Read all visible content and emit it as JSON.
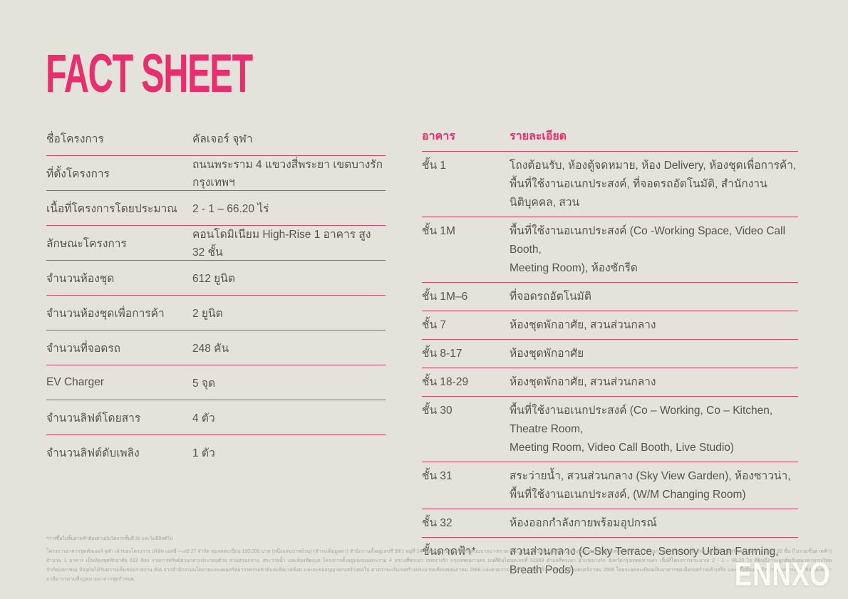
{
  "page": {
    "title": "FACT SHEET",
    "background_color": "#e4e3db",
    "accent_color": "#e82e6e",
    "divider_color": "#c9476f",
    "text_color": "#55544e"
  },
  "project_table": {
    "rows": [
      {
        "label": "ชื่อโครงการ",
        "value": "คัลเจอร์ จุฬา"
      },
      {
        "label": "ที่ตั้งโครงการ",
        "value": "ถนนพระราม 4 แขวงสี่พระยา เขตบางรัก กรุงเทพฯ"
      },
      {
        "label": "เนื้อที่โครงการโดยประมาณ",
        "value": "2 - 1 – 66.20 ไร่"
      },
      {
        "label": "ลักษณะโครงการ",
        "value": "คอนโดมิเนียม High-Rise 1 อาคาร สูง 32 ชั้น"
      },
      {
        "label": "จำนวนห้องชุด",
        "value": "612 ยูนิต"
      },
      {
        "label": "จำนวนห้องชุดเพื่อการค้า",
        "value": " 2 ยูนิต"
      },
      {
        "label": "จำนวนที่จอดรถ",
        "value": "248 คัน"
      },
      {
        "label": "EV Charger",
        "value": "5 จุด"
      },
      {
        "label": "จำนวนลิฟต์โดยสาร",
        "value": "4 ตัว"
      },
      {
        "label": "จำนวนลิฟต์ดับเพลิง",
        "value": "1 ตัว"
      }
    ]
  },
  "building_table": {
    "header": {
      "col1": "อาคาร",
      "col2": "รายละเอียด"
    },
    "rows": [
      {
        "floor": "ชั้น 1",
        "detail": "โถงต้อนรับ, ห้องตู้จดหมาย, ห้อง Delivery, ห้องชุดเพื่อการค้า,\nพื้นที่ใช้งานอเนกประสงค์, ที่จอดรถอัตโนมัติ, สำนักงานนิติบุคคล, สวน"
      },
      {
        "floor": "ชั้น 1M",
        "detail": "พื้นที่ใช้งานอเนกประสงค์ (Co -Working Space, Video Call Booth,\nMeeting Room), ห้องซักรีด"
      },
      {
        "floor": "ชั้น 1M–6",
        "detail": "ที่จอดรถอัตโนมัติ"
      },
      {
        "floor": "ชั้น 7",
        "detail": "ห้องชุดพักอาศัย, สวนส่วนกลาง"
      },
      {
        "floor": "ชั้น 8-17",
        "detail": "ห้องชุดพักอาศัย"
      },
      {
        "floor": "ชั้น 18-29",
        "detail": "ห้องชุดพักอาศัย, สวนส่วนกลาง"
      },
      {
        "floor": "ชั้น 30",
        "detail": "พื้นที่ใช้งานอเนกประสงค์ (Co – Working, Co – Kitchen, Theatre Room,\nMeeting Room, Video Call Booth, Live Studio)"
      },
      {
        "floor": "ชั้น 31",
        "detail": "สระว่ายน้ำ, สวนส่วนกลาง (Sky View Garden), ห้องซาวน่า,\nพื้นที่ใช้งานอเนกประสงค์, (W/M Changing Room)"
      },
      {
        "floor": "ชั้น 32",
        "detail": "ห้องออกกำลังกายพร้อมอุปกรณ์"
      },
      {
        "floor": "ชั้นดาดฟ้า*",
        "detail": "สวนส่วนกลาง (C-Sky Terrace, Sensory Urban Farming, Breath Pods)"
      }
    ]
  },
  "footnote": "*การขึ้นไปชั้นดาดฟ้าต้องผ่านบันไดจากชั้นที่ 32 และไม่มีลิฟต์ไป",
  "disclaimer": "โครงการอาคารชุดคัลเจอร์ จุฬา เจ้าของโครงการ บริษัท เอสซี – เจ5 27 จำกัด ทุนจดทะเบียน 100,000 บาท (หนึ่งแสนบาทถ้วน) (ชำระเต็มมูลค่า) สำนักงานตั้งอยู่เลขที่ 99/1 หมู่ที่ 14 ซอยหมู่บ้านวัดศรีมิตร ถนนบางนา-ตราด (กม.10.5) ตำบลบางพลีใหญ่ อำเภอบางพลี จังหวัดสมุทรปราการ กรรมการผู้จัดการ นายณภัทร บุรณศิริ ก่อสร้างเป็นอาคารชุดสูง 32 ชั้น (ไม่รวมชั้นดาดฟ้า) จำนวน 1 อาคาร เป็นห้องชุดพักอาศัย 612 ห้อง รายการทรัพย์ส่วนกลางประกอบด้วย สวนส่วนกลาง, สระว่ายน้ำ และห้องฟิตเนส โครงการตั้งอยู่บนถนนพระราม 4 แขวงสี่พระยา เขตบางรัก กรุงเทพมหานคร บนที่ดินโฉนดเลขที่ 52889 ตำบลสี่พระยา อำเภอบางรัก จังหวัดกรุงเทพมหานคร เนื้อที่โครงการประมาณ 2 - 1 – 66.20 ไร่ ที่ดินมีภาระผูกพันกับธนาคารกรุงไทย จำกัด(มหาชน) ปัจจุบันได้รับความเห็นชอบรายงาน EIA จากสำนักงานนโยบายและแผนทรัพยากรธรรมชาติและสิ่งแวดล้อม และจะขออนุญาตก่อสร้างต่อไป คาดว่าจะเริ่มก่อสร้างประมาณเดือนพฤษภาคม 2568 และคาดว่าจะก่อสร้างแล้วเสร็จประมาณเดือนพฤศจิกายน 2568 โดยจะจดทะเบียนเป็นอาคารชุดเมื่อก่อสร้างแล้วเสร็จ และผู้ซื้อห้องชุดมีหน้าที่ต้องชำระค่าใช้จ่ายและค่าภาษีอากรตามที่กฎหมายอาคารชุดกำหนด",
  "watermark": "ENNXO"
}
